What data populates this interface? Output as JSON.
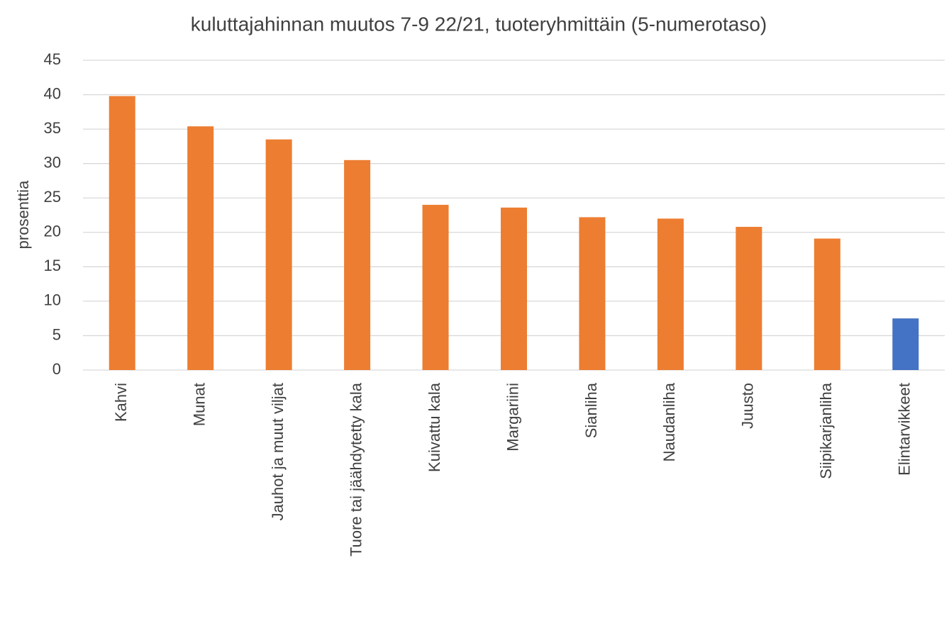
{
  "chart_data": {
    "type": "bar",
    "title": "kuluttajahinnan muutos 7-9 22/21, tuoteryhmittäin (5-numerotaso)",
    "y_label": "prosenttia",
    "categories": [
      "Kahvi",
      "Munat",
      "Jauhot ja muut viljat",
      "Tuore tai jäähdytetty kala",
      "Kuivattu kala",
      "Margariini",
      "Sianliha",
      "Naudanliha",
      "Juusto",
      "Siipikarjanliha",
      "Elintarvikkeet"
    ],
    "values": [
      39.8,
      35.4,
      33.5,
      30.5,
      24.0,
      23.6,
      22.2,
      22.0,
      20.8,
      19.1,
      7.5
    ],
    "colors": [
      "#ed7d31",
      "#ed7d31",
      "#ed7d31",
      "#ed7d31",
      "#ed7d31",
      "#ed7d31",
      "#ed7d31",
      "#ed7d31",
      "#ed7d31",
      "#ed7d31",
      "#4472c4"
    ],
    "ylim": [
      0,
      45
    ],
    "yticks": [
      0,
      5,
      10,
      15,
      20,
      25,
      30,
      35,
      40,
      45
    ],
    "grid": true
  }
}
